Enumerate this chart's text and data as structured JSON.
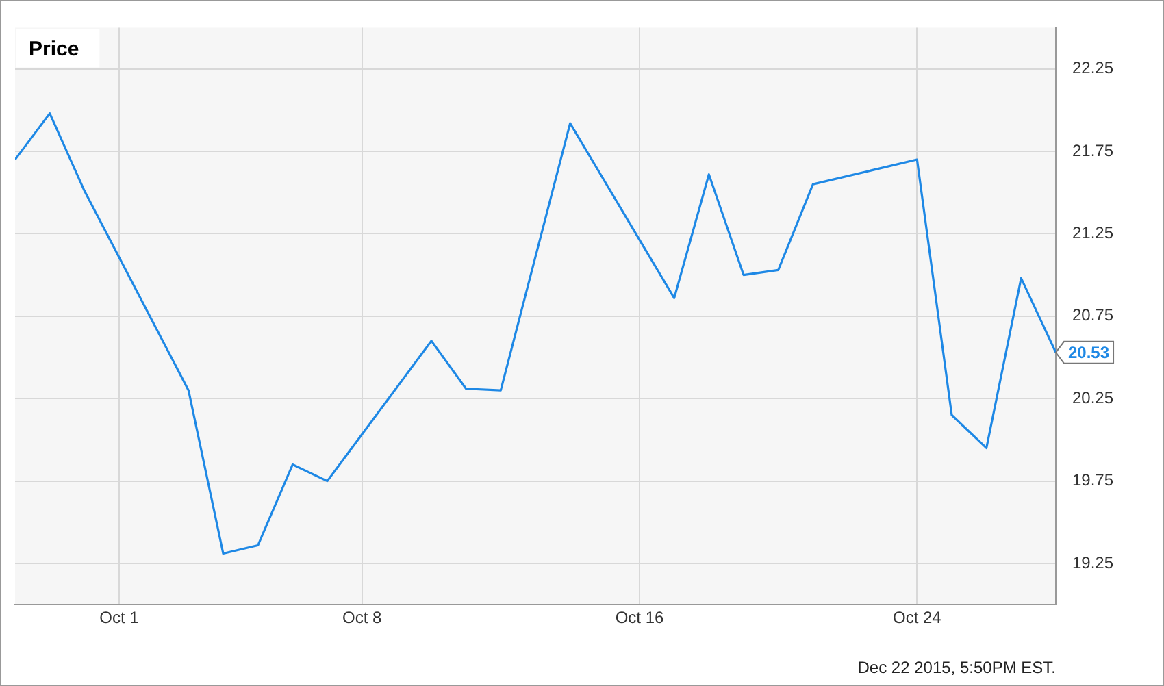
{
  "chart_data": {
    "type": "line",
    "title": "Price",
    "annotations": [
      {
        "text": "20.53",
        "x": "--10-28",
        "y": 20.53
      },
      "Dec 22 2015, 5:50PM EST."
    ],
    "x": [
      "--09-28",
      "--09-29",
      "--09-30",
      "--10-03",
      "--10-04",
      "--10-05",
      "--10-06",
      "--10-07",
      "--10-10",
      "--10-11",
      "--10-12",
      "--10-14",
      "--10-17",
      "--10-18",
      "--10-19",
      "--10-20",
      "--10-21",
      "--10-24",
      "--10-25",
      "--10-26",
      "--10-27",
      "--10-28"
    ],
    "series": [
      {
        "color": "#1e88e5",
        "values": [
          21.7,
          21.98,
          21.51,
          20.3,
          19.31,
          19.36,
          19.85,
          19.75,
          20.6,
          20.31,
          20.3,
          21.92,
          20.86,
          21.61,
          21.0,
          21.03,
          21.55,
          21.7,
          20.15,
          19.95,
          20.98,
          20.53
        ]
      }
    ],
    "xlim": [
      "--09-28",
      "--10-28"
    ],
    "xticks": [
      {
        "value": "--10-01",
        "label": "Oct 1"
      },
      {
        "value": "--10-08",
        "label": "Oct 8"
      },
      {
        "value": "--10-16",
        "label": "Oct 16"
      },
      {
        "value": "--10-24",
        "label": "Oct 24"
      }
    ],
    "ylim": [
      19.0,
      22.5
    ],
    "yticks": [
      19.25,
      19.75,
      20.25,
      20.75,
      21.25,
      21.75,
      22.25
    ],
    "grid": true,
    "legend": false,
    "marker": "none",
    "line_style": "solid"
  }
}
